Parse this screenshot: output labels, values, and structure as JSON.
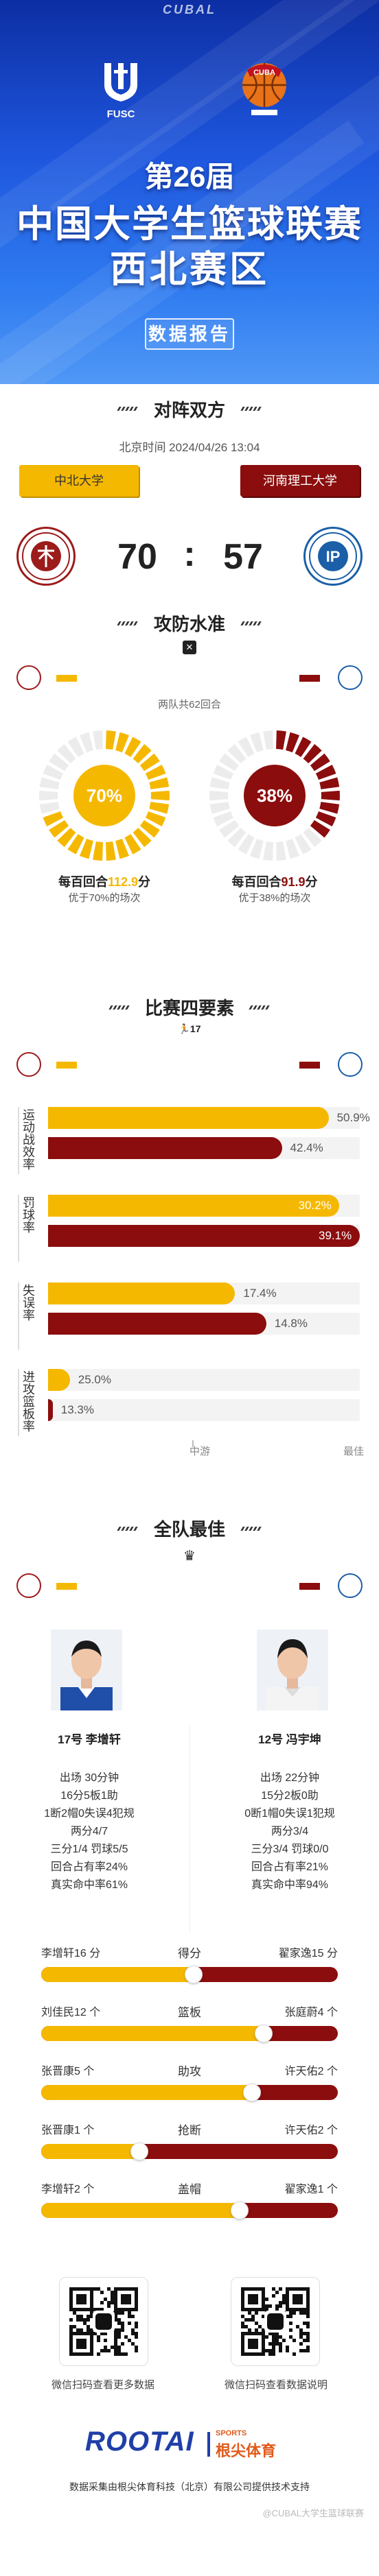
{
  "colors": {
    "home": "#f5b800",
    "away": "#8b0d0d",
    "accent_blue": "#1f58d8",
    "track": "#f0f0f0"
  },
  "header": {
    "top_logo": "CUBAL",
    "left_logo_text": "FUSC",
    "edition": "第26届",
    "title_line1": "中国大学生篮球联赛",
    "title_line2": "西北赛区",
    "subtitle": "数据报告"
  },
  "matchup": {
    "heading": "对阵双方",
    "datetime": "北京时间 2024/04/26 13:04",
    "home_team": "中北大学",
    "away_team": "河南理工大学",
    "home_score": "70",
    "colon": ":",
    "away_score": "57",
    "home_badge_icon": "university-seal-icon",
    "away_badge_icon": "university-seal-icon"
  },
  "offense": {
    "heading": "攻防水准",
    "rounds_note": "两队共62回合",
    "home": {
      "percent_label": "70%",
      "percent": 70,
      "ppp_prefix": "每百回合",
      "ppp_value": "112.9",
      "ppp_suffix": "分",
      "better_than": "优于70%的场次"
    },
    "away": {
      "percent_label": "38%",
      "percent": 38,
      "ppp_prefix": "每百回合",
      "ppp_value": "91.9",
      "ppp_suffix": "分",
      "better_than": "优于38%的场次"
    }
  },
  "four_factors": {
    "heading": "比赛四要素",
    "icon_text": "17",
    "axis_mid": "中游",
    "axis_max": "最佳",
    "items": [
      {
        "name": "运动战效率",
        "home_label": "50.9%",
        "home": 0.9,
        "away_label": "42.4%",
        "away": 0.75
      },
      {
        "name": "罚球率",
        "home_label": "30.2%",
        "home": 0.935,
        "away_label": "39.1%",
        "away": 1.0
      },
      {
        "name": "失误率",
        "home_label": "17.4%",
        "home": 0.6,
        "away_label": "14.8%",
        "away": 0.7
      },
      {
        "name": "进攻篮板率",
        "home_label": "25.0%",
        "home": 0.07,
        "away_label": "13.3%",
        "away": 0.015
      }
    ]
  },
  "best": {
    "heading": "全队最佳",
    "home_player": {
      "number_name": "17号 李增轩",
      "stats": [
        "出场 30分钟",
        "16分5板1助",
        "1断2帽0失误4犯规",
        "两分4/7",
        "三分1/4 罚球5/5",
        "回合占有率24%",
        "真实命中率61%"
      ]
    },
    "away_player": {
      "number_name": "12号 冯宇坤",
      "stats": [
        "出场 22分钟",
        "15分2板0助",
        "0断1帽0失误1犯规",
        "两分3/4",
        "三分3/4 罚球0/0",
        "回合占有率21%",
        "真实命中率94%"
      ]
    },
    "compare": [
      {
        "cat": "得分",
        "left": "李增轩16 分",
        "right": "翟家逸15 分",
        "ratio": 0.515
      },
      {
        "cat": "篮板",
        "left": "刘佳民12 个",
        "right": "张庭蔚4 个",
        "ratio": 0.75
      },
      {
        "cat": "助攻",
        "left": "张晋康5 个",
        "right": "许天佑2 个",
        "ratio": 0.71
      },
      {
        "cat": "抢断",
        "left": "张晋康1 个",
        "right": "许天佑2 个",
        "ratio": 0.33
      },
      {
        "cat": "盖帽",
        "left": "李增轩2 个",
        "right": "翟家逸1 个",
        "ratio": 0.67
      }
    ]
  },
  "footer": {
    "qr_left_caption": "微信扫码查看更多数据",
    "qr_right_caption": "微信扫码查看数据说明",
    "brand": "ROOTAI",
    "brand_sports": "SPORTS",
    "brand_cn": "根尖体育",
    "credit": "数据采集由根尖体育科技（北京）有限公司提供技术支持",
    "watermark": "@CUBAL大学生篮球联赛"
  }
}
